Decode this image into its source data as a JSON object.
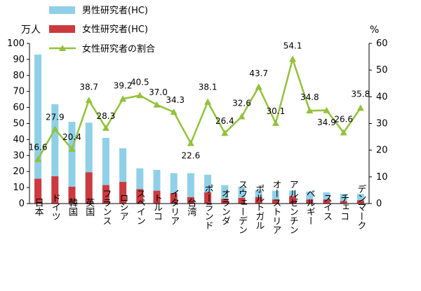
{
  "chart_data": {
    "type": "bar",
    "categories": [
      "日本",
      "ドイツ",
      "韓国",
      "英国",
      "フランス",
      "ロシア",
      "スペイン",
      "トルコ",
      "イタリア",
      "台湾",
      "ポーランド",
      "オランダ",
      "スウェーデン",
      "ポルトガル",
      "オーストリア",
      "アルゼンチン",
      "ベルギー",
      "スイス",
      "チェコ",
      "デンマーク"
    ],
    "series": [
      {
        "name": "男性研究者(HC)",
        "type": "bar",
        "axis": "left",
        "color": "#8fd0e8",
        "values": [
          93.0,
          62.0,
          51.0,
          50.5,
          41.0,
          34.5,
          22.0,
          21.0,
          19.0,
          19.0,
          18.0,
          11.5,
          10.5,
          8.5,
          8.0,
          8.0,
          7.5,
          7.0,
          6.0,
          6.0
        ]
      },
      {
        "name": "女性研究者(HC)",
        "type": "bar",
        "axis": "left",
        "color": "#cc3a3e",
        "values": [
          15.5,
          17.0,
          10.5,
          19.5,
          11.5,
          13.5,
          9.0,
          8.0,
          6.5,
          4.0,
          7.0,
          3.0,
          3.5,
          4.0,
          2.5,
          4.5,
          2.5,
          2.5,
          1.5,
          2.0
        ]
      },
      {
        "name": "女性研究者の割合",
        "type": "line",
        "axis": "right",
        "color": "#93c13c",
        "values": [
          16.6,
          27.9,
          20.4,
          38.7,
          28.3,
          39.2,
          40.5,
          37.0,
          34.3,
          22.6,
          38.1,
          26.4,
          32.6,
          43.7,
          30.1,
          54.1,
          34.8,
          34.9,
          26.6,
          35.8
        ]
      }
    ],
    "data_labels": [
      "16.6",
      "27.9",
      "20.4",
      "38.7",
      "28.3",
      "39.2",
      "40.5",
      "37.0",
      "34.3",
      "22.6",
      "38.1",
      "26.4",
      "32.6",
      "43.7",
      "30.1",
      "54.1",
      "34.8",
      "34.9",
      "26.6",
      "35.8"
    ],
    "y_left": {
      "unit": "万人",
      "ylim": [
        0,
        100
      ],
      "ticks": [
        "0",
        "10",
        "20",
        "30",
        "40",
        "50",
        "60",
        "70",
        "80",
        "90",
        "100"
      ]
    },
    "y_right": {
      "unit": "%",
      "ylim": [
        0,
        60
      ],
      "ticks": [
        "0",
        "10",
        "20",
        "30",
        "40",
        "50",
        "60"
      ]
    },
    "grid": false,
    "legend_position": "top"
  }
}
